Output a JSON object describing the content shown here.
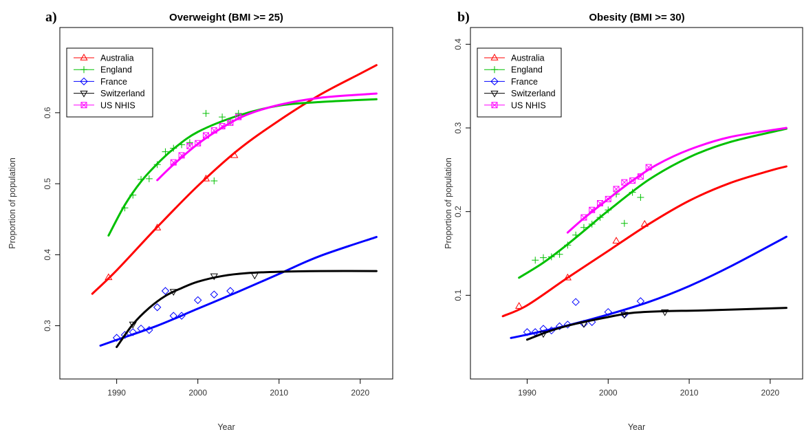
{
  "chart_data": [
    {
      "panel_label": "a)",
      "type": "line",
      "title": "Overweight (BMI >= 25)",
      "xlabel": "Year",
      "ylabel": "Proportion of population",
      "xlim": [
        1983,
        2024
      ],
      "ylim": [
        0.225,
        0.72
      ],
      "xticks": [
        1990,
        2000,
        2010,
        2020
      ],
      "yticks": [
        0.3,
        0.4,
        0.5,
        0.6
      ],
      "tick_labels_x": [
        "1990",
        "2000",
        "2010",
        "2020"
      ],
      "tick_labels_y": [
        "0.3",
        "0.4",
        "0.5",
        "0.6"
      ],
      "legend_position": "top-left",
      "grid": false,
      "series": [
        {
          "name": "Australia",
          "color": "#ff0000",
          "marker": "triangle-up",
          "curve": [
            [
              1987,
              0.345
            ],
            [
              1990,
              0.378
            ],
            [
              1995,
              0.439
            ],
            [
              2000,
              0.497
            ],
            [
              2005,
              0.548
            ],
            [
              2010,
              0.589
            ],
            [
              2015,
              0.625
            ],
            [
              2020,
              0.655
            ],
            [
              2022,
              0.667
            ]
          ],
          "points": [
            [
              1989,
              0.368
            ],
            [
              1995,
              0.438
            ],
            [
              2001,
              0.507
            ],
            [
              2004.5,
              0.54
            ]
          ]
        },
        {
          "name": "England",
          "color": "#00c000",
          "marker": "plus",
          "curve": [
            [
              1989,
              0.427
            ],
            [
              1991,
              0.47
            ],
            [
              1993,
              0.503
            ],
            [
              1995,
              0.528
            ],
            [
              1997,
              0.549
            ],
            [
              2000,
              0.573
            ],
            [
              2005,
              0.596
            ],
            [
              2010,
              0.61
            ],
            [
              2015,
              0.615
            ],
            [
              2022,
              0.619
            ]
          ],
          "points": [
            [
              1991,
              0.466
            ],
            [
              1992,
              0.484
            ],
            [
              1993,
              0.506
            ],
            [
              1994,
              0.507
            ],
            [
              1995,
              0.527
            ],
            [
              1996,
              0.545
            ],
            [
              1997,
              0.55
            ],
            [
              1998,
              0.555
            ],
            [
              1999,
              0.558
            ],
            [
              2001,
              0.599
            ],
            [
              2002,
              0.504
            ],
            [
              2003,
              0.594
            ],
            [
              2004,
              0.587
            ],
            [
              2005,
              0.599
            ]
          ]
        },
        {
          "name": "France",
          "color": "#0000ff",
          "marker": "diamond",
          "curve": [
            [
              1988,
              0.272
            ],
            [
              1990,
              0.28
            ],
            [
              1995,
              0.3
            ],
            [
              2000,
              0.324
            ],
            [
              2005,
              0.348
            ],
            [
              2010,
              0.373
            ],
            [
              2015,
              0.398
            ],
            [
              2022,
              0.425
            ]
          ],
          "points": [
            [
              1990,
              0.283
            ],
            [
              1991,
              0.287
            ],
            [
              1992,
              0.291
            ],
            [
              1993,
              0.296
            ],
            [
              1994,
              0.294
            ],
            [
              1995,
              0.326
            ],
            [
              1996,
              0.349
            ],
            [
              1997,
              0.314
            ],
            [
              1998,
              0.314
            ],
            [
              2000,
              0.336
            ],
            [
              2002,
              0.344
            ],
            [
              2004,
              0.349
            ]
          ]
        },
        {
          "name": "Switzerland",
          "color": "#000000",
          "marker": "triangle-down",
          "curve": [
            [
              1990,
              0.27
            ],
            [
              1992,
              0.302
            ],
            [
              1994,
              0.325
            ],
            [
              1996,
              0.342
            ],
            [
              1998,
              0.353
            ],
            [
              2000,
              0.362
            ],
            [
              2003,
              0.37
            ],
            [
              2006,
              0.374
            ],
            [
              2010,
              0.376
            ],
            [
              2015,
              0.377
            ],
            [
              2022,
              0.377
            ]
          ],
          "points": [
            [
              1992,
              0.302
            ],
            [
              1997,
              0.348
            ],
            [
              2002,
              0.37
            ],
            [
              2007,
              0.371
            ]
          ]
        },
        {
          "name": "US NHIS",
          "color": "#ff00ff",
          "marker": "square-x",
          "curve": [
            [
              1995,
              0.505
            ],
            [
              1997,
              0.527
            ],
            [
              2000,
              0.556
            ],
            [
              2003,
              0.579
            ],
            [
              2006,
              0.597
            ],
            [
              2010,
              0.611
            ],
            [
              2015,
              0.621
            ],
            [
              2022,
              0.627
            ]
          ],
          "points": [
            [
              1997,
              0.53
            ],
            [
              1998,
              0.54
            ],
            [
              1999,
              0.553
            ],
            [
              2000,
              0.557
            ],
            [
              2001,
              0.568
            ],
            [
              2002,
              0.575
            ],
            [
              2003,
              0.581
            ],
            [
              2004,
              0.586
            ],
            [
              2005,
              0.594
            ]
          ]
        }
      ]
    },
    {
      "panel_label": "b)",
      "type": "line",
      "title": "Obesity (BMI >= 30)",
      "xlabel": "Year",
      "ylabel": "Proportion of population",
      "xlim": [
        1983,
        2024
      ],
      "ylim": [
        0.0,
        0.42
      ],
      "xticks": [
        1990,
        2000,
        2010,
        2020
      ],
      "yticks": [
        0.1,
        0.2,
        0.3,
        0.4
      ],
      "tick_labels_x": [
        "1990",
        "2000",
        "2010",
        "2020"
      ],
      "tick_labels_y": [
        "0.1",
        "0.2",
        "0.3",
        "0.4"
      ],
      "legend_position": "top-left",
      "grid": false,
      "series": [
        {
          "name": "Australia",
          "color": "#ff0000",
          "marker": "triangle-up",
          "curve": [
            [
              1987,
              0.075
            ],
            [
              1990,
              0.088
            ],
            [
              1995,
              0.121
            ],
            [
              2000,
              0.153
            ],
            [
              2005,
              0.185
            ],
            [
              2010,
              0.213
            ],
            [
              2015,
              0.234
            ],
            [
              2020,
              0.249
            ],
            [
              2022,
              0.254
            ]
          ],
          "points": [
            [
              1989,
              0.087
            ],
            [
              1995,
              0.121
            ],
            [
              2001,
              0.165
            ],
            [
              2004.5,
              0.185
            ]
          ]
        },
        {
          "name": "England",
          "color": "#00c000",
          "marker": "plus",
          "curve": [
            [
              1989,
              0.121
            ],
            [
              1992,
              0.139
            ],
            [
              1995,
              0.161
            ],
            [
              1998,
              0.185
            ],
            [
              2000,
              0.201
            ],
            [
              2005,
              0.238
            ],
            [
              2010,
              0.265
            ],
            [
              2015,
              0.283
            ],
            [
              2022,
              0.299
            ]
          ],
          "points": [
            [
              1991,
              0.142
            ],
            [
              1992,
              0.145
            ],
            [
              1993,
              0.146
            ],
            [
              1994,
              0.149
            ],
            [
              1995,
              0.16
            ],
            [
              1996,
              0.172
            ],
            [
              1997,
              0.181
            ],
            [
              1998,
              0.185
            ],
            [
              1999,
              0.193
            ],
            [
              2000,
              0.202
            ],
            [
              2001,
              0.221
            ],
            [
              2002,
              0.186
            ],
            [
              2003,
              0.223
            ],
            [
              2004,
              0.217
            ]
          ]
        },
        {
          "name": "France",
          "color": "#0000ff",
          "marker": "diamond",
          "curve": [
            [
              1988,
              0.049
            ],
            [
              1990,
              0.053
            ],
            [
              1995,
              0.064
            ],
            [
              2000,
              0.077
            ],
            [
              2005,
              0.092
            ],
            [
              2010,
              0.111
            ],
            [
              2015,
              0.134
            ],
            [
              2022,
              0.17
            ]
          ],
          "points": [
            [
              1990,
              0.056
            ],
            [
              1991,
              0.056
            ],
            [
              1992,
              0.06
            ],
            [
              1993,
              0.058
            ],
            [
              1994,
              0.063
            ],
            [
              1995,
              0.065
            ],
            [
              1996,
              0.092
            ],
            [
              1997,
              0.066
            ],
            [
              1998,
              0.068
            ],
            [
              2000,
              0.08
            ],
            [
              2002,
              0.077
            ],
            [
              2004,
              0.093
            ]
          ]
        },
        {
          "name": "Switzerland",
          "color": "#000000",
          "marker": "triangle-down",
          "curve": [
            [
              1990,
              0.047
            ],
            [
              1993,
              0.058
            ],
            [
              1996,
              0.066
            ],
            [
              2000,
              0.074
            ],
            [
              2003,
              0.079
            ],
            [
              2007,
              0.081
            ],
            [
              2012,
              0.082
            ],
            [
              2022,
              0.085
            ]
          ],
          "points": [
            [
              1992,
              0.054
            ],
            [
              1997,
              0.066
            ],
            [
              2002,
              0.077
            ],
            [
              2007,
              0.08
            ]
          ]
        },
        {
          "name": "US NHIS",
          "color": "#ff00ff",
          "marker": "square-x",
          "curve": [
            [
              1995,
              0.175
            ],
            [
              1997,
              0.192
            ],
            [
              2000,
              0.215
            ],
            [
              2003,
              0.237
            ],
            [
              2006,
              0.256
            ],
            [
              2010,
              0.274
            ],
            [
              2015,
              0.289
            ],
            [
              2022,
              0.3
            ]
          ],
          "points": [
            [
              1997,
              0.193
            ],
            [
              1998,
              0.202
            ],
            [
              1999,
              0.21
            ],
            [
              2000,
              0.215
            ],
            [
              2001,
              0.227
            ],
            [
              2002,
              0.235
            ],
            [
              2003,
              0.237
            ],
            [
              2004,
              0.242
            ],
            [
              2005,
              0.253
            ]
          ]
        }
      ]
    }
  ]
}
